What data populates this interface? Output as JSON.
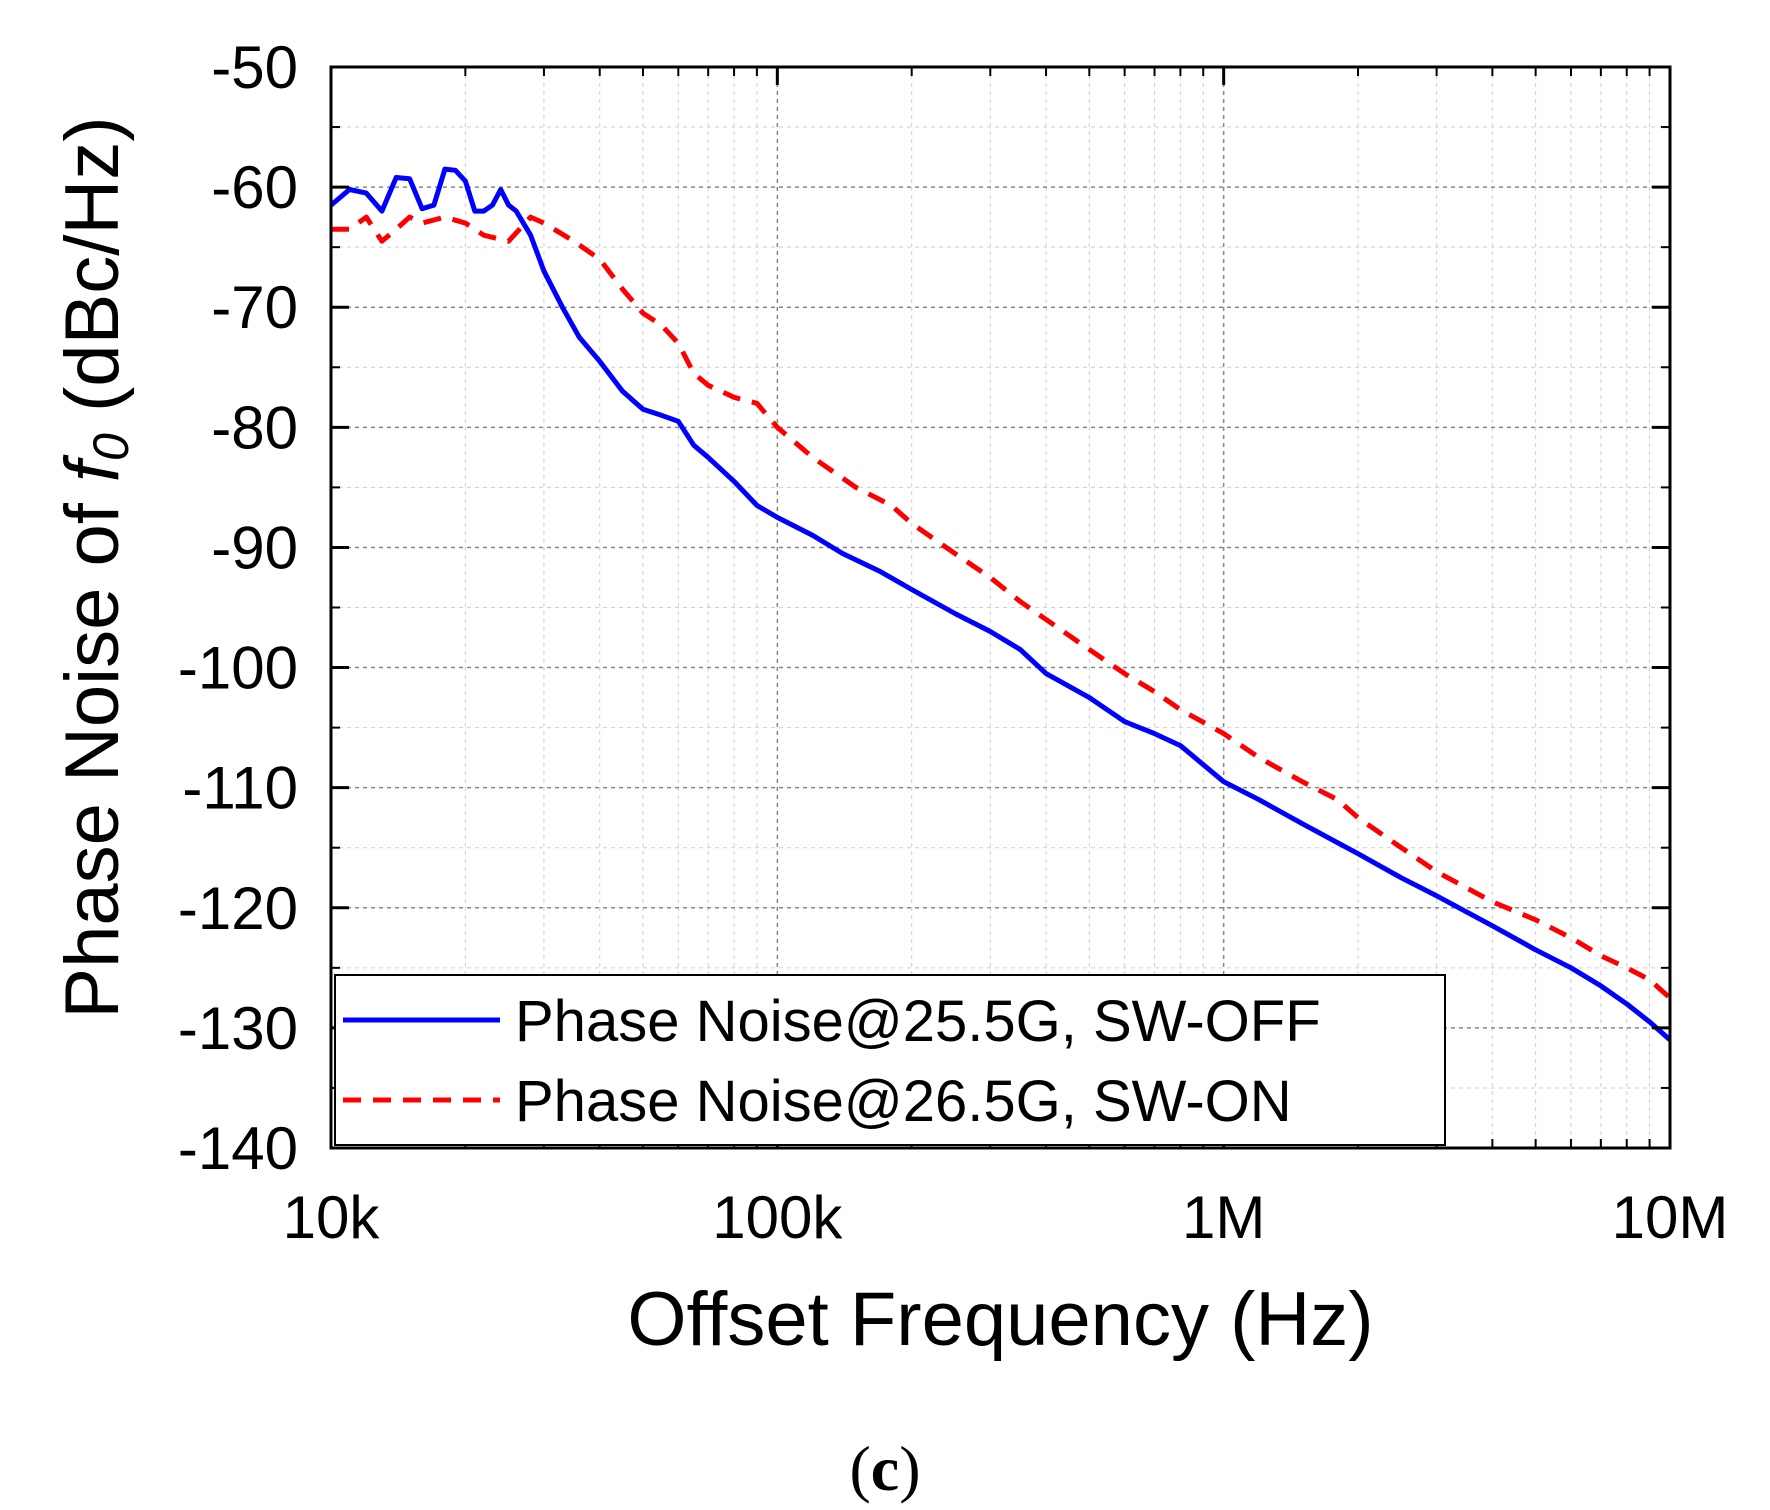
{
  "chart_data": {
    "type": "line",
    "xlabel": "Offset Frequency (Hz)",
    "ylabel_pre": "Phase Noise of ",
    "ylabel_italic": "f",
    "ylabel_sub": "0",
    "ylabel_post": " (dBc/Hz)",
    "x_scale": "log",
    "xlim": [
      10000,
      10000000
    ],
    "ylim": [
      -140,
      -50
    ],
    "x_ticks": [
      {
        "value": 10000,
        "label": "10k"
      },
      {
        "value": 100000,
        "label": "100k"
      },
      {
        "value": 1000000,
        "label": "1M"
      },
      {
        "value": 10000000,
        "label": "10M"
      }
    ],
    "y_ticks": [
      {
        "value": -50,
        "label": "-50"
      },
      {
        "value": -60,
        "label": "-60"
      },
      {
        "value": -70,
        "label": "-70"
      },
      {
        "value": -80,
        "label": "-80"
      },
      {
        "value": -90,
        "label": "-90"
      },
      {
        "value": -100,
        "label": "-100"
      },
      {
        "value": -110,
        "label": "-110"
      },
      {
        "value": -120,
        "label": "-120"
      },
      {
        "value": -130,
        "label": "-130"
      },
      {
        "value": -140,
        "label": "-140"
      }
    ],
    "grid": true,
    "legend_position": "bottom-left",
    "panel_label": {
      "open": "(",
      "letter": "c",
      "close": ")"
    },
    "series": [
      {
        "name": "Phase Noise@25.5G, SW-OFF",
        "color": "#0000ff",
        "style": "solid",
        "x": [
          10000,
          11000,
          12000,
          13000,
          14000,
          15000,
          16000,
          17000,
          18000,
          19000,
          20000,
          21000,
          22000,
          23000,
          24000,
          25000,
          26000,
          28000,
          30000,
          33000,
          36000,
          40000,
          45000,
          50000,
          55000,
          60000,
          65000,
          70000,
          80000,
          90000,
          100000,
          120000,
          140000,
          170000,
          200000,
          250000,
          300000,
          350000,
          400000,
          500000,
          600000,
          700000,
          800000,
          1000000,
          1200000,
          1500000,
          2000000,
          2500000,
          3000000,
          4000000,
          5000000,
          6000000,
          7000000,
          8000000,
          9000000,
          10000000
        ],
        "y": [
          -61.5,
          -60.2,
          -60.5,
          -62.0,
          -59.2,
          -59.3,
          -61.8,
          -61.5,
          -58.5,
          -58.6,
          -59.5,
          -62.0,
          -62.0,
          -61.5,
          -60.2,
          -61.5,
          -62.0,
          -64.0,
          -67.0,
          -70.0,
          -72.5,
          -74.5,
          -77.0,
          -78.5,
          -79.0,
          -79.5,
          -81.5,
          -82.5,
          -84.5,
          -86.5,
          -87.5,
          -89.0,
          -90.5,
          -92.0,
          -93.5,
          -95.5,
          -97.0,
          -98.5,
          -100.5,
          -102.5,
          -104.5,
          -105.5,
          -106.5,
          -109.5,
          -111.0,
          -113.0,
          -115.5,
          -117.5,
          -119.0,
          -121.5,
          -123.5,
          -125.0,
          -126.5,
          -128.0,
          -129.5,
          -131.0
        ]
      },
      {
        "name": "Phase Noise@26.5G, SW-ON",
        "color": "#ff0000",
        "style": "dashed",
        "x": [
          10000,
          11000,
          12000,
          13000,
          14000,
          15000,
          16000,
          18000,
          20000,
          22000,
          25000,
          28000,
          30000,
          35000,
          40000,
          45000,
          50000,
          55000,
          60000,
          65000,
          70000,
          80000,
          90000,
          100000,
          120000,
          150000,
          180000,
          200000,
          250000,
          300000,
          350000,
          400000,
          500000,
          600000,
          700000,
          800000,
          1000000,
          1200000,
          1500000,
          1800000,
          2000000,
          2500000,
          3000000,
          4000000,
          5000000,
          6000000,
          7000000,
          8000000,
          9000000,
          10000000
        ],
        "y": [
          -63.5,
          -63.5,
          -62.5,
          -64.5,
          -63.5,
          -62.5,
          -63.0,
          -62.5,
          -63.0,
          -64.0,
          -64.5,
          -62.5,
          -63.0,
          -64.5,
          -66.0,
          -68.5,
          -70.5,
          -71.5,
          -73.0,
          -75.5,
          -76.5,
          -77.5,
          -78.0,
          -80.0,
          -82.5,
          -85.0,
          -86.5,
          -88.0,
          -90.5,
          -92.5,
          -94.5,
          -96.0,
          -98.5,
          -100.5,
          -102.0,
          -103.5,
          -105.5,
          -107.5,
          -109.5,
          -111.0,
          -112.5,
          -115.0,
          -117.0,
          -119.5,
          -121.0,
          -122.5,
          -124.0,
          -125.0,
          -126.0,
          -127.5
        ]
      }
    ]
  }
}
